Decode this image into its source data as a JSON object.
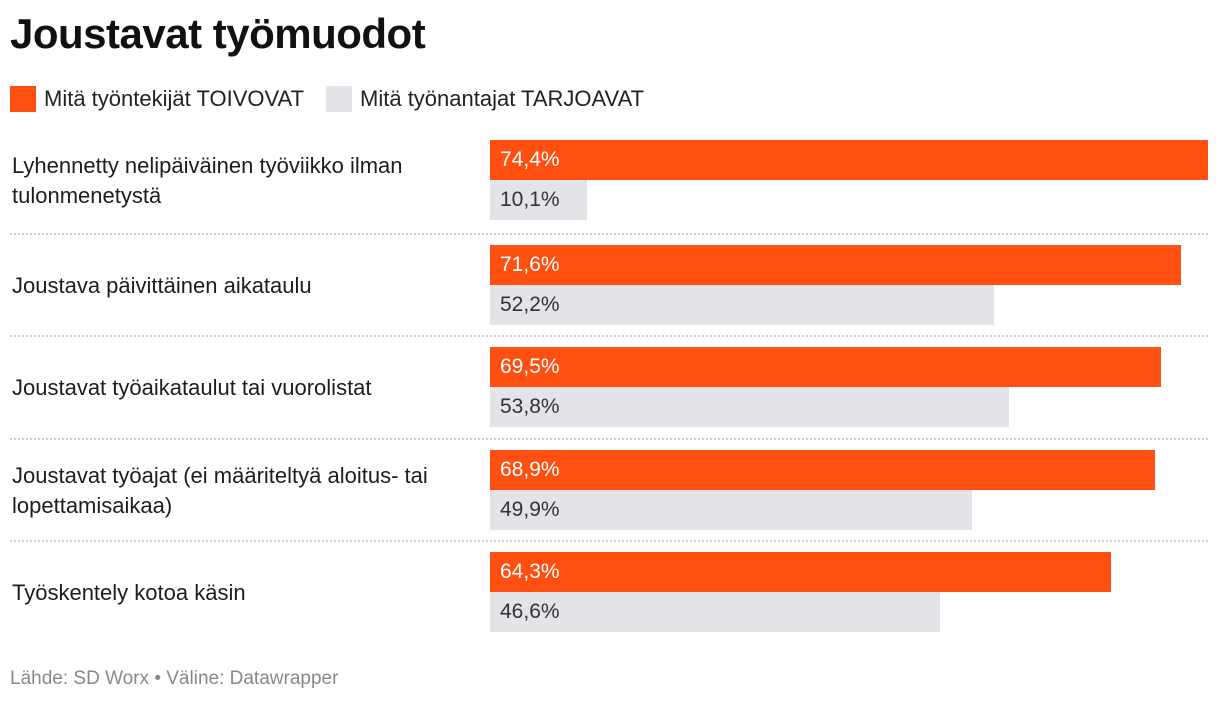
{
  "title": "Joustavat työmuodot",
  "source": "Lähde: SD Worx • Väline: Datawrapper",
  "colors": {
    "series_a": "#ff4f11",
    "series_b": "#e3e3e8"
  },
  "chart_data": {
    "type": "bar",
    "orientation": "horizontal",
    "title": "Joustavat työmuodot",
    "value_unit": "%",
    "xlim": [
      0,
      74.4
    ],
    "legend_position": "top-left",
    "categories": [
      "Lyhennetty nelipäiväinen työviikko ilman tulonmenetystä",
      "Joustava päivittäinen aikataulu",
      "Joustavat työaikataulut tai vuorolistat",
      "Joustavat työajat (ei määriteltyä aloitus- tai lopettamisaikaa)",
      "Työskentely kotoa käsin"
    ],
    "series": [
      {
        "name": "Mitä työntekijät TOIVOVAT",
        "values": [
          74.4,
          71.6,
          69.5,
          68.9,
          64.3
        ],
        "labels": [
          "74,4%",
          "71,6%",
          "69,5%",
          "68,9%",
          "64,3%"
        ]
      },
      {
        "name": "Mitä työnantajat TARJOAVAT",
        "values": [
          10.1,
          52.2,
          53.8,
          49.9,
          46.6
        ],
        "labels": [
          "10,1%",
          "52,2%",
          "53,8%",
          "49,9%",
          "46,6%"
        ]
      }
    ]
  }
}
